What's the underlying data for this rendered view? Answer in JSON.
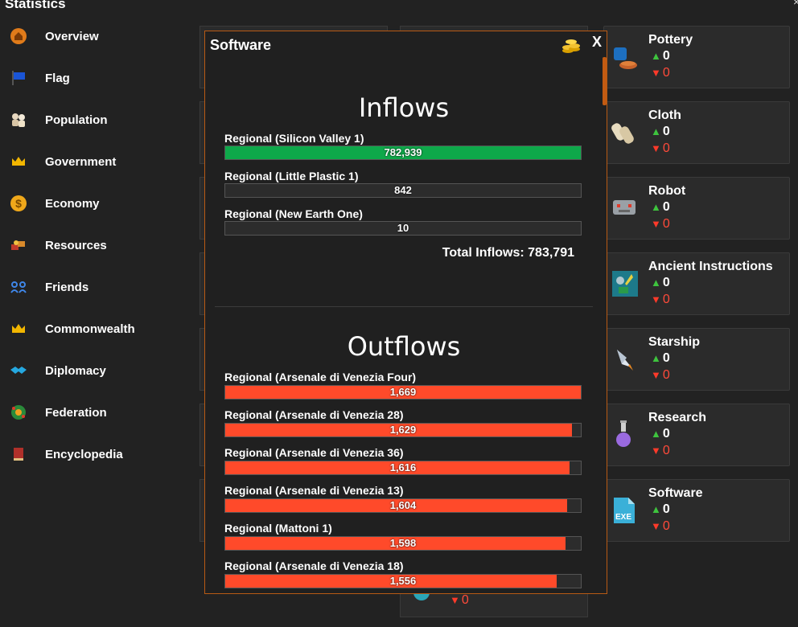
{
  "window": {
    "title": "Statistics",
    "close_glyph": "×"
  },
  "sidebar": {
    "items": [
      {
        "label": "Overview",
        "icon": "home-icon"
      },
      {
        "label": "Flag",
        "icon": "flag-icon"
      },
      {
        "label": "Population",
        "icon": "people-icon"
      },
      {
        "label": "Government",
        "icon": "crown-icon"
      },
      {
        "label": "Economy",
        "icon": "dollar-coin-icon"
      },
      {
        "label": "Resources",
        "icon": "resources-icon"
      },
      {
        "label": "Friends",
        "icon": "friends-icon"
      },
      {
        "label": "Commonwealth",
        "icon": "crown-icon"
      },
      {
        "label": "Diplomacy",
        "icon": "handshake-icon"
      },
      {
        "label": "Federation",
        "icon": "federation-icon"
      },
      {
        "label": "Encyclopedia",
        "icon": "book-icon"
      }
    ]
  },
  "resource_cards": [
    {
      "name": "Pottery",
      "up": "0",
      "down": "0",
      "icon": "pottery-icon"
    },
    {
      "name": "Cloth",
      "up": "0",
      "down": "0",
      "icon": "cloth-icon"
    },
    {
      "name": "Robot",
      "up": "0",
      "down": "0",
      "icon": "robot-icon"
    },
    {
      "name": "Ancient Instructions",
      "up": "0",
      "down": "0",
      "icon": "ancient-instructions-icon"
    },
    {
      "name": "Starship",
      "up": "0",
      "down": "0",
      "icon": "starship-icon"
    },
    {
      "name": "Research",
      "up": "0",
      "down": "0",
      "icon": "flask-icon"
    },
    {
      "name": "Software",
      "up": "0",
      "down": "0",
      "icon": "exe-file-icon"
    }
  ],
  "hidden_card_peek": {
    "down": "0"
  },
  "modal": {
    "title": "Software",
    "close_label": "X",
    "coins_icon": "coins-icon",
    "inflows": {
      "heading": "Inflows",
      "rows": [
        {
          "label": "Regional (Silicon Valley 1)",
          "value": "782,939",
          "fraction": 1.0
        },
        {
          "label": "Regional (Little Plastic 1)",
          "value": "842",
          "fraction": 0.0
        },
        {
          "label": "Regional (New Earth One)",
          "value": "10",
          "fraction": 0.0
        }
      ],
      "total_label": "Total Inflows: 783,791"
    },
    "outflows": {
      "heading": "Outflows",
      "rows": [
        {
          "label": "Regional (Arsenale di Venezia Four)",
          "value": "1,669",
          "fraction": 1.0
        },
        {
          "label": "Regional (Arsenale di Venezia 28)",
          "value": "1,629",
          "fraction": 0.976
        },
        {
          "label": "Regional (Arsenale di Venezia 36)",
          "value": "1,616",
          "fraction": 0.968
        },
        {
          "label": "Regional (Arsenale di Venezia 13)",
          "value": "1,604",
          "fraction": 0.961
        },
        {
          "label": "Regional (Mattoni 1)",
          "value": "1,598",
          "fraction": 0.957
        },
        {
          "label": "Regional (Arsenale di Venezia 18)",
          "value": "1,556",
          "fraction": 0.932
        }
      ]
    }
  },
  "colors": {
    "accent_orange": "#b85a14",
    "inflow_green": "#0ea84a",
    "outflow_red": "#ff4a2a",
    "up_green": "#3ec43e",
    "down_red": "#ff4a3a"
  }
}
